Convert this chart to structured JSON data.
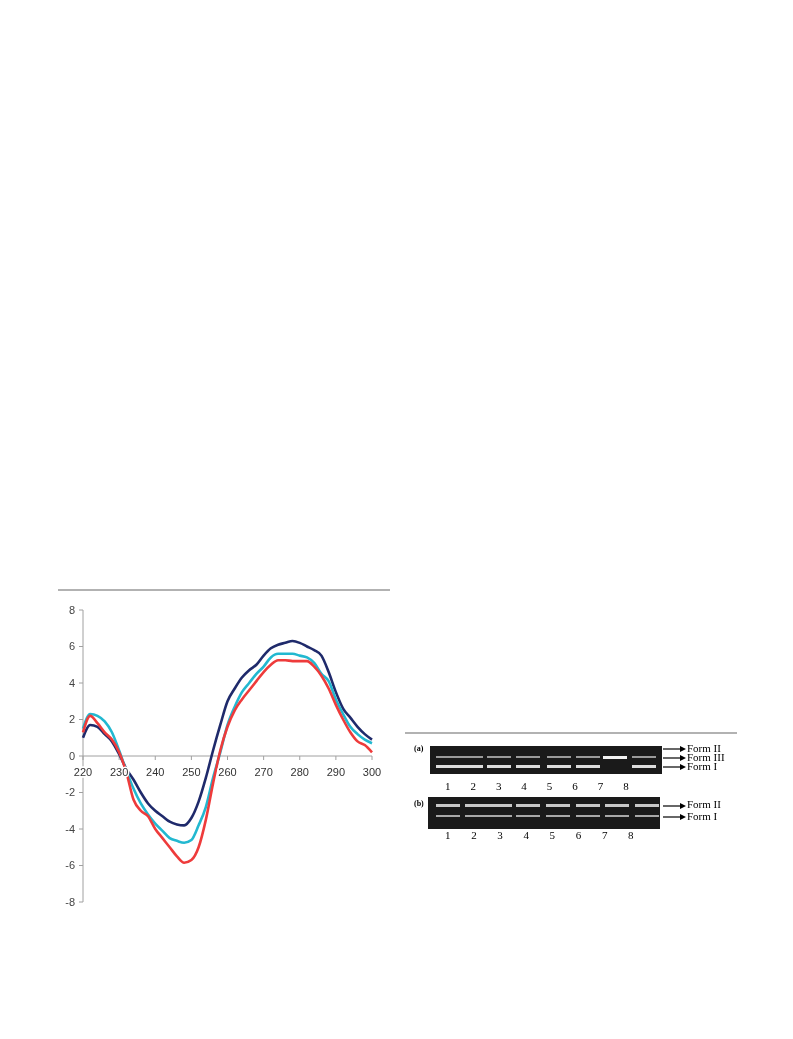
{
  "chart_data": [
    {
      "type": "line",
      "x": [
        220,
        222,
        224,
        226,
        228,
        230,
        232,
        234,
        236,
        238,
        240,
        242,
        244,
        246,
        248,
        250,
        252,
        254,
        256,
        258,
        260,
        262,
        264,
        266,
        268,
        270,
        272,
        274,
        276,
        278,
        280,
        282,
        284,
        286,
        288,
        290,
        292,
        294,
        296,
        298,
        300
      ],
      "series": [
        {
          "color": "#1f2a6b",
          "values": [
            1.0,
            1.7,
            1.6,
            1.2,
            0.8,
            0.1,
            -0.7,
            -1.3,
            -2.0,
            -2.6,
            -3.0,
            -3.3,
            -3.6,
            -3.75,
            -3.8,
            -3.4,
            -2.5,
            -1.2,
            0.3,
            1.7,
            3.0,
            3.7,
            4.3,
            4.7,
            5.0,
            5.5,
            5.9,
            6.1,
            6.2,
            6.3,
            6.2,
            6.0,
            5.8,
            5.5,
            4.6,
            3.5,
            2.6,
            2.1,
            1.6,
            1.2,
            0.9
          ]
        },
        {
          "color": "#22b8d0",
          "values": [
            1.5,
            2.3,
            2.2,
            1.9,
            1.3,
            0.3,
            -0.8,
            -1.8,
            -2.6,
            -3.2,
            -3.7,
            -4.1,
            -4.5,
            -4.65,
            -4.75,
            -4.6,
            -3.8,
            -2.8,
            -1.2,
            0.2,
            1.7,
            2.7,
            3.5,
            4.0,
            4.5,
            4.9,
            5.4,
            5.6,
            5.6,
            5.6,
            5.5,
            5.4,
            5.1,
            4.5,
            4.1,
            3.1,
            2.3,
            1.6,
            1.2,
            0.9,
            0.7
          ]
        },
        {
          "color": "#ee3b3b",
          "values": [
            1.3,
            2.2,
            1.8,
            1.3,
            0.9,
            0.2,
            -0.9,
            -2.4,
            -3.0,
            -3.3,
            -4.0,
            -4.5,
            -5.0,
            -5.5,
            -5.85,
            -5.7,
            -5.0,
            -3.5,
            -1.5,
            0.3,
            1.6,
            2.5,
            3.1,
            3.6,
            4.1,
            4.6,
            5.0,
            5.25,
            5.25,
            5.2,
            5.2,
            5.2,
            4.9,
            4.4,
            3.7,
            2.8,
            2.0,
            1.3,
            0.8,
            0.6,
            0.2
          ]
        }
      ],
      "xlim": [
        220,
        300
      ],
      "xticks": [
        220,
        230,
        240,
        250,
        260,
        270,
        280,
        290,
        300
      ],
      "ylim": [
        -8,
        8
      ],
      "yticks": [
        -8,
        -6,
        -4,
        -2,
        0,
        2,
        4,
        6,
        8
      ],
      "grid": false,
      "marker": "none",
      "line_style": "solid"
    },
    {
      "type": "other",
      "annotations": [
        "(a)",
        "Form II",
        "Form III",
        "Form I",
        "1 2 3 4 5 6 7 8",
        "(b)",
        "Form II",
        "Form I",
        "1 2 3 4 5 6 7 8"
      ]
    }
  ]
}
